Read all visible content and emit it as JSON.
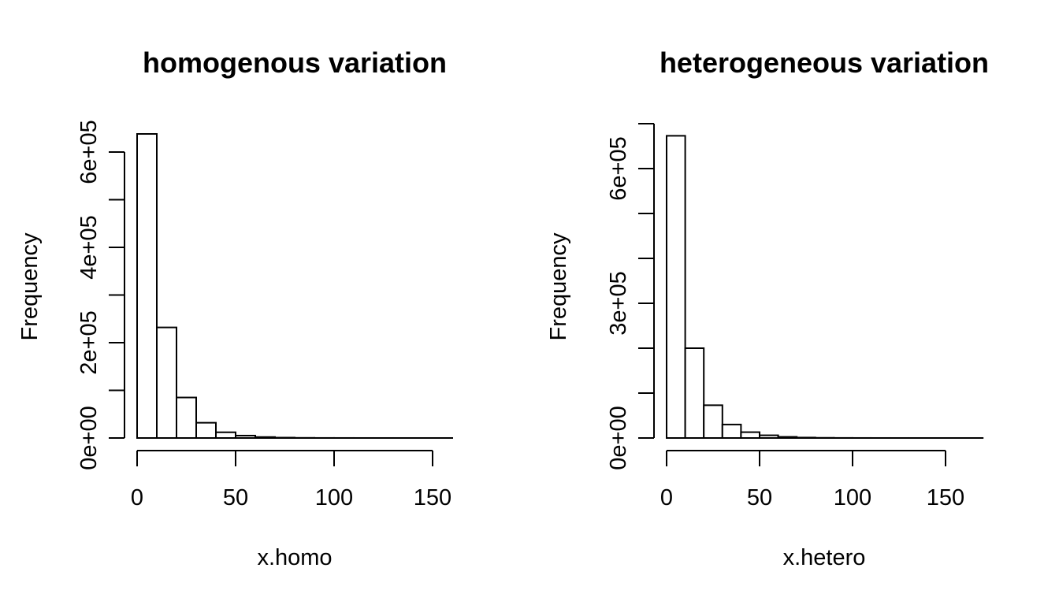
{
  "chart_data": [
    {
      "type": "bar",
      "title": "homogenous variation",
      "xlabel": "x.homo",
      "ylabel": "Frequency",
      "bin_width": 10,
      "bins_start": 0,
      "values": [
        638000,
        232000,
        85000,
        32000,
        12000,
        5000,
        2000,
        800,
        300,
        100,
        50,
        20,
        10,
        5,
        2,
        1
      ],
      "xlim": [
        0,
        160
      ],
      "ylim": [
        0,
        600000
      ],
      "xticks": [
        0,
        50,
        100,
        150
      ],
      "xtick_labels": [
        "0",
        "50",
        "100",
        "150"
      ],
      "yticks_minor": [
        0,
        100000,
        200000,
        300000,
        400000,
        500000,
        600000
      ],
      "yticks_labeled": [
        0,
        200000,
        400000,
        600000
      ],
      "ytick_labels": [
        "0e+00",
        "2e+05",
        "4e+05",
        "6e+05"
      ],
      "grid": false,
      "legend": "none"
    },
    {
      "type": "bar",
      "title": "heterogeneous variation",
      "xlabel": "x.hetero",
      "ylabel": "Frequency",
      "bin_width": 10,
      "bins_start": 0,
      "values": [
        673000,
        200000,
        73000,
        30000,
        13000,
        6000,
        2500,
        1000,
        400,
        150,
        60,
        25,
        10,
        5,
        2,
        1,
        1
      ],
      "xlim": [
        0,
        170
      ],
      "ylim": [
        0,
        700000
      ],
      "xticks": [
        0,
        50,
        100,
        150
      ],
      "xtick_labels": [
        "0",
        "50",
        "100",
        "150"
      ],
      "yticks_minor": [
        0,
        100000,
        200000,
        300000,
        400000,
        500000,
        600000,
        700000
      ],
      "yticks_labeled": [
        0,
        300000,
        600000
      ],
      "ytick_labels": [
        "0e+00",
        "3e+05",
        "6e+05"
      ],
      "grid": false,
      "legend": "none"
    }
  ]
}
